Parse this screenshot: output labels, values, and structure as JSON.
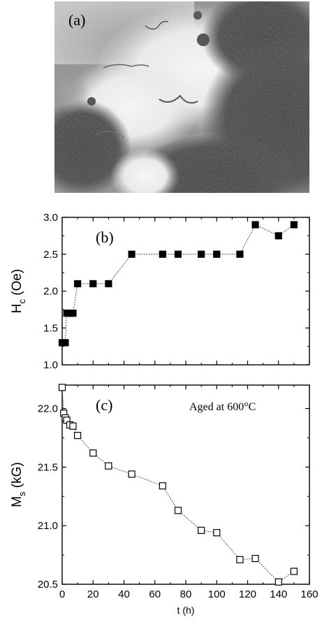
{
  "panel_a": {
    "label": "(a)"
  },
  "chart_data": [
    {
      "type": "line",
      "panel_label": "(b)",
      "ylabel": "H",
      "ylabel_subscript": "c",
      "ylabel_unit": " (Oe)",
      "xlabel": "",
      "xlim": [
        0,
        160
      ],
      "ylim": [
        1.0,
        3.0
      ],
      "yticks": [
        "1.0",
        "1.5",
        "2.0",
        "2.5",
        "3.0"
      ],
      "marker": "filled-square",
      "series": [
        {
          "x": [
            0,
            2,
            3,
            5,
            7,
            10,
            20,
            30,
            45,
            65,
            75,
            90,
            100,
            115,
            125,
            140,
            150
          ],
          "y": [
            1.3,
            1.3,
            1.7,
            1.7,
            1.7,
            2.1,
            2.1,
            2.1,
            2.5,
            2.5,
            2.5,
            2.5,
            2.5,
            2.5,
            2.9,
            2.75,
            2.9
          ]
        }
      ]
    },
    {
      "type": "line",
      "panel_label": "(c)",
      "annotation": "Aged at 600°C",
      "ylabel": "M",
      "ylabel_subscript": "s",
      "ylabel_unit": " (kG)",
      "xlabel": "t (h)",
      "xlim": [
        0,
        160
      ],
      "ylim": [
        20.5,
        22.2
      ],
      "xticks": [
        "0",
        "20",
        "40",
        "60",
        "80",
        "100",
        "120",
        "140",
        "160"
      ],
      "yticks": [
        "20.5",
        "21.0",
        "21.5",
        "22.0"
      ],
      "marker": "open-square",
      "series": [
        {
          "x": [
            0,
            1,
            2,
            3,
            5,
            7,
            10,
            20,
            30,
            45,
            65,
            75,
            90,
            100,
            115,
            125,
            140,
            150
          ],
          "y": [
            22.18,
            21.96,
            21.92,
            21.9,
            21.86,
            21.85,
            21.77,
            21.62,
            21.51,
            21.44,
            21.34,
            21.13,
            20.96,
            20.94,
            20.71,
            20.72,
            20.52,
            20.61
          ]
        }
      ]
    }
  ]
}
